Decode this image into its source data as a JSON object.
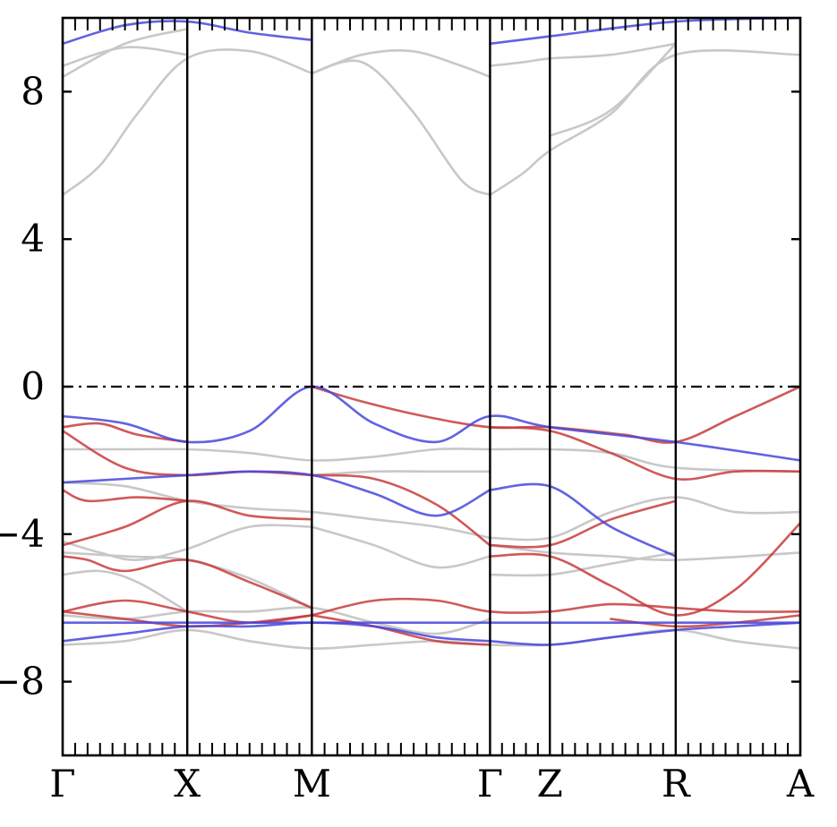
{
  "chart_data": {
    "type": "line",
    "title": "",
    "xlabel": "",
    "ylabel": "",
    "ylim": [
      -10,
      10
    ],
    "y_ticks": [
      {
        "value": 8,
        "label": "8"
      },
      {
        "value": 4,
        "label": "4"
      },
      {
        "value": 0,
        "label": "0"
      },
      {
        "value": -4,
        "label": "−4"
      },
      {
        "value": -8,
        "label": "−8"
      }
    ],
    "grid": false,
    "legend": "none",
    "fermi_level": 0,
    "kpoints": [
      {
        "label": "Γ",
        "x": 0
      },
      {
        "label": "X",
        "x": 1
      },
      {
        "label": "M",
        "x": 2
      },
      {
        "label": "Γ",
        "x": 3.43
      },
      {
        "label": "Z",
        "x": 3.91
      },
      {
        "label": "R",
        "x": 4.92
      },
      {
        "label": "A",
        "x": 5.92
      }
    ],
    "colors": {
      "red": "#c83c3c",
      "blue": "#4646dc",
      "gray": "#c8c8c8",
      "fermi": "#000000"
    },
    "series": [
      {
        "color": "gray",
        "x": [
          0,
          0.3,
          0.6,
          1,
          1.5,
          2
        ],
        "y": [
          5.2,
          6.0,
          7.4,
          8.9,
          9.1,
          8.5
        ]
      },
      {
        "color": "gray",
        "x": [
          0,
          0.5,
          1
        ],
        "y": [
          8.4,
          9.3,
          9.7
        ]
      },
      {
        "color": "gray",
        "x": [
          0,
          0.5,
          1
        ],
        "y": [
          8.7,
          9.2,
          9.0
        ]
      },
      {
        "color": "blue",
        "x": [
          0,
          0.5,
          1,
          1.5,
          2
        ],
        "y": [
          9.3,
          9.8,
          9.9,
          9.6,
          9.4
        ]
      },
      {
        "color": "gray",
        "x": [
          2,
          2.4,
          2.8,
          3.2,
          3.43
        ],
        "y": [
          8.5,
          8.8,
          7.5,
          5.6,
          5.2
        ]
      },
      {
        "color": "gray",
        "x": [
          2,
          2.4,
          2.8,
          3.2,
          3.43
        ],
        "y": [
          8.5,
          9.0,
          9.1,
          8.7,
          8.4
        ]
      },
      {
        "color": "gray",
        "x": [
          3.43,
          3.7,
          3.91,
          4.4,
          4.92,
          5.92
        ],
        "y": [
          5.2,
          5.8,
          6.4,
          7.4,
          9.0,
          9.0
        ]
      },
      {
        "color": "gray",
        "x": [
          3.43,
          3.7,
          3.91,
          4.4,
          4.92
        ],
        "y": [
          8.7,
          8.8,
          8.9,
          9.0,
          9.3
        ]
      },
      {
        "color": "gray",
        "x": [
          3.91,
          4.4,
          4.92
        ],
        "y": [
          6.8,
          7.5,
          9.3
        ]
      },
      {
        "color": "blue",
        "x": [
          3.43,
          3.91,
          4.92,
          5.92
        ],
        "y": [
          9.3,
          9.5,
          9.9,
          10.0
        ]
      },
      {
        "color": "red",
        "x": [
          2,
          2.4,
          2.9,
          3.43,
          3.91,
          4.5,
          4.92,
          5.4,
          5.92
        ],
        "y": [
          0,
          -0.4,
          -0.8,
          -1.1,
          -1.1,
          -1.3,
          -1.5,
          -0.8,
          0
        ]
      },
      {
        "color": "blue",
        "x": [
          0,
          0.5,
          1,
          1.5,
          2,
          2.5,
          3.0,
          3.43,
          3.91,
          4.92,
          5.92
        ],
        "y": [
          -0.8,
          -1.0,
          -1.5,
          -1.2,
          0,
          -1.0,
          -1.5,
          -0.8,
          -1.1,
          -1.5,
          -2.0
        ]
      },
      {
        "color": "red",
        "x": [
          0,
          0.3,
          0.6,
          1
        ],
        "y": [
          -1.1,
          -1.0,
          -1.3,
          -1.5
        ]
      },
      {
        "color": "gray",
        "x": [
          0,
          0.5,
          1,
          1.5,
          2,
          2.5,
          3.0,
          3.43
        ],
        "y": [
          -1.7,
          -1.7,
          -1.7,
          -1.8,
          -2.0,
          -1.9,
          -1.7,
          -1.7
        ]
      },
      {
        "color": "red",
        "x": [
          0,
          0.5,
          1,
          1.5,
          2
        ],
        "y": [
          -1.2,
          -2.2,
          -2.4,
          -2.3,
          -2.4
        ]
      },
      {
        "color": "gray",
        "x": [
          3.43,
          3.91,
          4.4,
          4.92,
          5.92
        ],
        "y": [
          -1.7,
          -1.7,
          -1.8,
          -2.2,
          -2.3
        ]
      },
      {
        "color": "red",
        "x": [
          3.43,
          3.91,
          4.4,
          4.92,
          5.4,
          5.92
        ],
        "y": [
          -1.1,
          -1.2,
          -1.8,
          -2.5,
          -2.3,
          -2.3
        ]
      },
      {
        "color": "gray",
        "x": [
          2,
          2.5,
          3.0,
          3.43
        ],
        "y": [
          -2.4,
          -2.3,
          -2.3,
          -2.3
        ]
      },
      {
        "color": "blue",
        "x": [
          0,
          0.5,
          1,
          1.5,
          2,
          2.5,
          3.0,
          3.43
        ],
        "y": [
          -2.6,
          -2.5,
          -2.4,
          -2.3,
          -2.4,
          -2.9,
          -3.5,
          -2.8
        ]
      },
      {
        "color": "blue",
        "x": [
          3.43,
          3.91,
          4.4,
          4.92
        ],
        "y": [
          -2.8,
          -2.7,
          -3.8,
          -4.6
        ]
      },
      {
        "color": "gray",
        "x": [
          0,
          0.5,
          1,
          1.5,
          2,
          2.5,
          3.0,
          3.43
        ],
        "y": [
          -2.6,
          -2.7,
          -3.1,
          -3.3,
          -3.4,
          -3.6,
          -3.8,
          -4.1
        ]
      },
      {
        "color": "red",
        "x": [
          0,
          0.5,
          1,
          1.5,
          2
        ],
        "y": [
          -4.3,
          -3.8,
          -3.1,
          -3.5,
          -3.6
        ]
      },
      {
        "color": "red",
        "x": [
          0,
          0.2,
          0.6,
          1
        ],
        "y": [
          -2.8,
          -3.1,
          -3.0,
          -3.1
        ]
      },
      {
        "color": "red",
        "x": [
          2,
          2.5,
          3.0,
          3.43
        ],
        "y": [
          -2.4,
          -2.5,
          -3.2,
          -4.3
        ]
      },
      {
        "color": "gray",
        "x": [
          3.43,
          3.91,
          4.4,
          4.92,
          5.4,
          5.92
        ],
        "y": [
          -4.1,
          -4.1,
          -3.4,
          -3.0,
          -3.4,
          -3.4
        ]
      },
      {
        "color": "red",
        "x": [
          3.43,
          3.91,
          4.4,
          4.92
        ],
        "y": [
          -4.3,
          -4.3,
          -3.6,
          -3.1
        ]
      },
      {
        "color": "gray",
        "x": [
          0,
          0.3,
          0.6,
          1,
          1.5,
          2
        ],
        "y": [
          -4.2,
          -4.5,
          -4.7,
          -4.4,
          -3.8,
          -3.8
        ]
      },
      {
        "color": "gray",
        "x": [
          2,
          2.5,
          3.0,
          3.43
        ],
        "y": [
          -3.8,
          -4.3,
          -4.9,
          -4.6
        ]
      },
      {
        "color": "red",
        "x": [
          0,
          0.2,
          0.5,
          1,
          1.5,
          2
        ],
        "y": [
          -4.6,
          -4.7,
          -5.0,
          -4.7,
          -5.3,
          -6.0
        ]
      },
      {
        "color": "red",
        "x": [
          3.43,
          3.91,
          4.4,
          4.92,
          5.4,
          5.92
        ],
        "y": [
          -4.6,
          -4.6,
          -5.4,
          -6.2,
          -5.5,
          -3.7
        ]
      },
      {
        "color": "gray",
        "x": [
          0,
          0.5,
          1,
          1.5,
          2
        ],
        "y": [
          -4.5,
          -4.6,
          -4.7,
          -5.2,
          -6.0
        ]
      },
      {
        "color": "gray",
        "x": [
          3.43,
          3.91,
          4.4,
          4.92,
          5.92
        ],
        "y": [
          -4.3,
          -4.5,
          -4.6,
          -4.7,
          -4.5
        ]
      },
      {
        "color": "gray",
        "x": [
          0,
          0.3,
          0.6,
          1
        ],
        "y": [
          -5.1,
          -5.0,
          -5.3,
          -6.1
        ]
      },
      {
        "color": "gray",
        "x": [
          3.43,
          3.91,
          4.4,
          4.92
        ],
        "y": [
          -5.1,
          -5.1,
          -4.8,
          -4.5
        ]
      },
      {
        "color": "red",
        "x": [
          0,
          0.5,
          1,
          1.5,
          2
        ],
        "y": [
          -6.1,
          -5.8,
          -6.1,
          -6.4,
          -6.2
        ]
      },
      {
        "color": "red",
        "x": [
          2,
          2.5,
          3.0,
          3.43,
          3.91,
          4.4,
          4.92,
          5.4,
          5.92
        ],
        "y": [
          -6.2,
          -5.8,
          -5.8,
          -6.1,
          -6.1,
          -5.9,
          -6.0,
          -6.1,
          -6.1
        ]
      },
      {
        "color": "gray",
        "x": [
          0,
          0.5,
          1,
          1.5,
          2,
          2.5,
          3.0,
          3.43
        ],
        "y": [
          -6.2,
          -6.3,
          -6.1,
          -6.1,
          -6.0,
          -6.4,
          -6.7,
          -6.3
        ]
      },
      {
        "color": "blue",
        "x": [
          0,
          0.5,
          1,
          1.5,
          2,
          2.5,
          3.0,
          3.43,
          3.91,
          4.4,
          4.92,
          5.4,
          5.92
        ],
        "y": [
          -6.4,
          -6.4,
          -6.4,
          -6.4,
          -6.4,
          -6.4,
          -6.4,
          -6.4,
          -6.4,
          -6.4,
          -6.4,
          -6.4,
          -6.4
        ]
      },
      {
        "color": "blue",
        "x": [
          0,
          0.5,
          1,
          1.5,
          2,
          2.5,
          3.0,
          3.43
        ],
        "y": [
          -6.9,
          -6.7,
          -6.5,
          -6.5,
          -6.4,
          -6.5,
          -6.8,
          -6.9
        ]
      },
      {
        "color": "blue",
        "x": [
          3.43,
          3.91,
          4.4,
          4.92,
          5.4,
          5.92
        ],
        "y": [
          -6.9,
          -7.0,
          -6.8,
          -6.6,
          -6.5,
          -6.4
        ]
      },
      {
        "color": "red",
        "x": [
          0,
          0.5,
          1,
          1.5,
          2
        ],
        "y": [
          -6.1,
          -6.3,
          -6.5,
          -6.4,
          -6.2
        ]
      },
      {
        "color": "red",
        "x": [
          2,
          2.5,
          3.0,
          3.43
        ],
        "y": [
          -6.2,
          -6.5,
          -6.9,
          -7.0
        ]
      },
      {
        "color": "red",
        "x": [
          4.4,
          4.92,
          5.4,
          5.92
        ],
        "y": [
          -6.3,
          -6.5,
          -6.4,
          -6.2
        ]
      },
      {
        "color": "gray",
        "x": [
          0,
          0.5,
          1,
          1.5,
          2,
          2.5,
          3.0,
          3.43,
          3.91,
          4.4,
          4.92,
          5.4,
          5.92
        ],
        "y": [
          -7.0,
          -6.9,
          -6.6,
          -6.9,
          -7.1,
          -7.0,
          -6.9,
          -7.0,
          -7.0,
          -6.8,
          -6.6,
          -6.9,
          -7.1
        ]
      }
    ]
  }
}
